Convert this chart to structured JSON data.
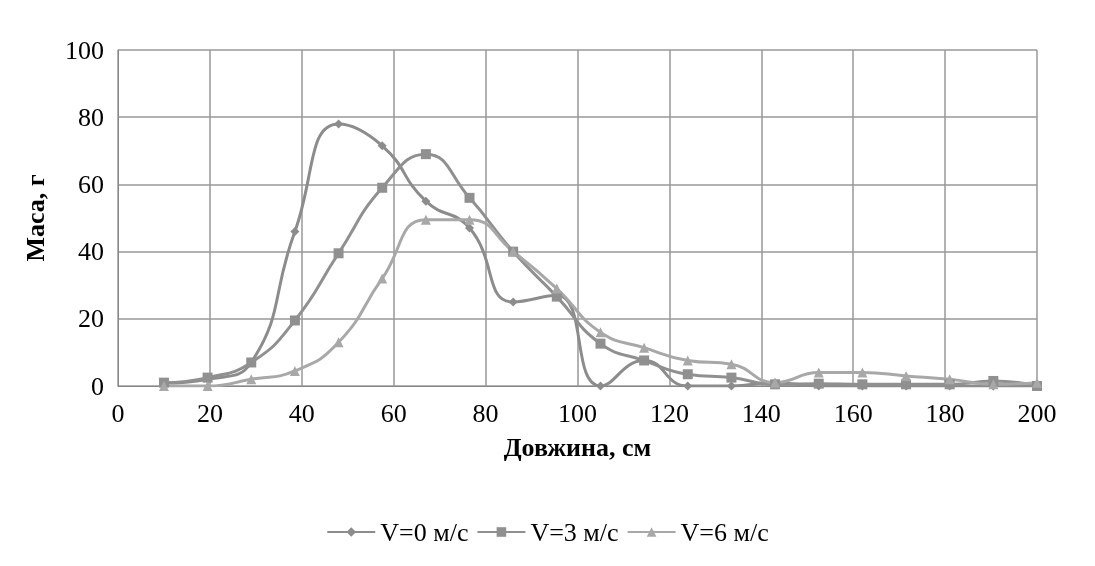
{
  "chart_data": {
    "type": "line",
    "xlabel": "Довжина, см",
    "ylabel": "Маса, г",
    "xlim": [
      0,
      200
    ],
    "xticks": [
      0,
      20,
      40,
      60,
      80,
      100,
      120,
      140,
      160,
      180,
      200
    ],
    "ylim": [
      0,
      100
    ],
    "yticks": [
      0,
      20,
      40,
      60,
      80,
      100
    ],
    "grid": true,
    "legend": "bottom",
    "x": [
      10,
      19.5,
      29,
      38.5,
      48,
      57.5,
      67,
      76.5,
      86,
      95.5,
      105,
      114.5,
      124,
      133.5,
      143,
      152.5,
      162,
      171.5,
      181,
      190.5,
      200
    ],
    "series": [
      {
        "name": "V=0 м/с",
        "color": "#8c8c8c",
        "marker": "diamond",
        "values": [
          0.8,
          2,
          7,
          46,
          78,
          71.5,
          55,
          47,
          25,
          27,
          0,
          7.6,
          0,
          0,
          1,
          0,
          0,
          0,
          0,
          0,
          0
        ]
      },
      {
        "name": "V=3 м/с",
        "color": "#909090",
        "marker": "square",
        "values": [
          1,
          2.5,
          7,
          19.5,
          39.5,
          59,
          69,
          56,
          40,
          26.6,
          12.6,
          7.6,
          3.5,
          2.5,
          0.5,
          0.7,
          0.5,
          0.5,
          0.5,
          1.5,
          0
        ]
      },
      {
        "name": "V=6 м/с",
        "color": "#a8a8a8",
        "marker": "triangle",
        "values": [
          0,
          0,
          2,
          4.5,
          13,
          32,
          49.5,
          49.5,
          40,
          29,
          16,
          11.4,
          7.6,
          6.5,
          1,
          4,
          4,
          3,
          2,
          0.5,
          1
        ]
      }
    ]
  }
}
